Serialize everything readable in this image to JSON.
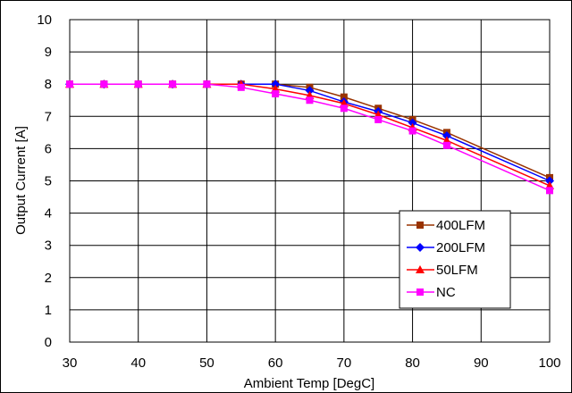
{
  "chart_data": {
    "type": "line",
    "xlabel": "Ambient Temp [DegC]",
    "ylabel": "Output Current [A]",
    "xlim": [
      30,
      100
    ],
    "ylim": [
      0,
      10
    ],
    "xticks": [
      30,
      40,
      50,
      60,
      70,
      80,
      90,
      100
    ],
    "yticks": [
      0,
      1,
      2,
      3,
      4,
      5,
      6,
      7,
      8,
      9,
      10
    ],
    "grid": true,
    "legend": "lower-right",
    "x": [
      30,
      35,
      40,
      45,
      50,
      55,
      60,
      65,
      70,
      75,
      80,
      85,
      100
    ],
    "series": [
      {
        "name": "400LFM",
        "color": "#993300",
        "marker": "square",
        "values": [
          8,
          8,
          8,
          8,
          8,
          8,
          8,
          7.9,
          7.6,
          7.25,
          6.9,
          6.5,
          5.1
        ]
      },
      {
        "name": "200LFM",
        "color": "#0000ff",
        "marker": "diamond",
        "values": [
          8,
          8,
          8,
          8,
          8,
          8,
          8,
          7.8,
          7.45,
          7.15,
          6.8,
          6.4,
          5.0
        ]
      },
      {
        "name": "50LFM",
        "color": "#ff0000",
        "marker": "triangle",
        "values": [
          8,
          8,
          8,
          8,
          8,
          8,
          7.85,
          7.65,
          7.4,
          7.05,
          6.65,
          6.25,
          4.85
        ]
      },
      {
        "name": "NC",
        "color": "#ff00ff",
        "marker": "square",
        "values": [
          8,
          8,
          8,
          8,
          8,
          7.9,
          7.7,
          7.5,
          7.25,
          6.9,
          6.55,
          6.1,
          4.7
        ]
      }
    ]
  }
}
